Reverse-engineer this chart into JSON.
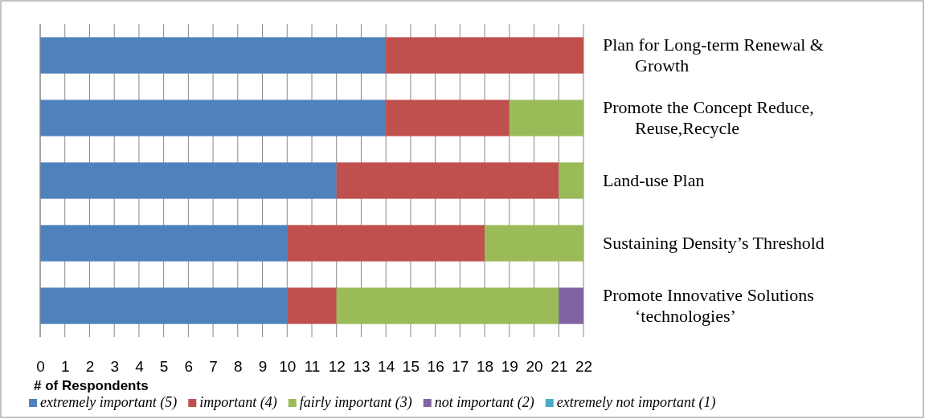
{
  "chart_data": {
    "type": "bar",
    "orientation": "horizontal",
    "stacked": true,
    "xlabel": "# of Respondents",
    "categories": [
      "Plan for Long-term Renewal & Growth",
      "Promote the Concept Reduce, Reuse,Recycle",
      "Land-use Plan",
      "Sustaining Density’s Threshold",
      "Promote Innovative Solutions ‘technologies’"
    ],
    "series": [
      {
        "name": "extremely important (5)",
        "color": "#4f81bd",
        "values": [
          14,
          14,
          12,
          10,
          10
        ]
      },
      {
        "name": "important (4)",
        "color": "#c0504d",
        "values": [
          8,
          5,
          9,
          8,
          2
        ]
      },
      {
        "name": "fairly important (3)",
        "color": "#9bbb59",
        "values": [
          0,
          3,
          1,
          4,
          9
        ]
      },
      {
        "name": "not important (2)",
        "color": "#8064a2",
        "values": [
          0,
          0,
          0,
          0,
          1
        ]
      },
      {
        "name": "extremely not important (1)",
        "color": "#4bacc6",
        "values": [
          0,
          0,
          0,
          0,
          0
        ]
      }
    ],
    "xlim": [
      0,
      22
    ],
    "xticks": [
      0,
      1,
      2,
      3,
      4,
      5,
      6,
      7,
      8,
      9,
      10,
      11,
      12,
      13,
      14,
      15,
      16,
      17,
      18,
      19,
      20,
      21,
      22
    ],
    "grid": "x",
    "legend": "bottom"
  }
}
